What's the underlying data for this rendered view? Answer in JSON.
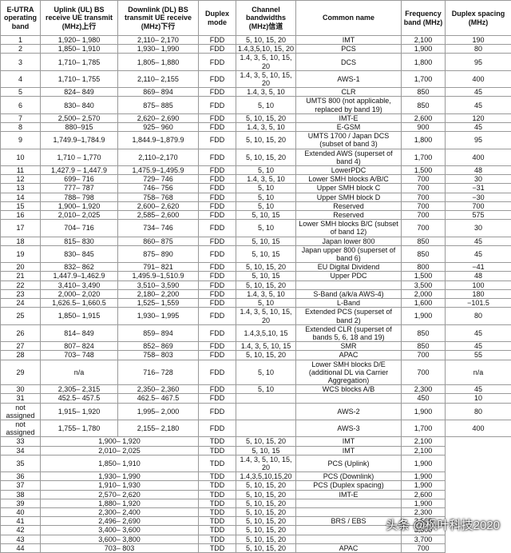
{
  "header": [
    "E-UTRA operating band",
    "Uplink (UL) BS receive UE transmit (MHz)上行",
    "Downlink (DL) BS transmit UE receive (MHz)下行",
    "Duplex mode",
    "Channel bandwidths (MHz)信道",
    "Common name",
    "Frequency band (MHz)",
    "Duplex spacing (MHz)"
  ],
  "rows": [
    {
      "band": "1",
      "uplink": "1,920– 1,980",
      "downlink": "2,110– 2,170",
      "duplex": "FDD",
      "bandwidths": "5, 10, 15, 20",
      "name": "IMT",
      "freq": "2,100",
      "spacing": "190"
    },
    {
      "band": "2",
      "uplink": "1,850– 1,910",
      "downlink": "1,930– 1,990",
      "duplex": "FDD",
      "bandwidths": "1.4,3,5,10, 15, 20",
      "name": "PCS",
      "freq": "1,900",
      "spacing": "80"
    },
    {
      "band": "3",
      "uplink": "1,710– 1,785",
      "downlink": "1,805– 1,880",
      "duplex": "FDD",
      "bandwidths": "1.4, 3, 5, 10, 15, 20",
      "name": "DCS",
      "freq": "1,800",
      "spacing": "95"
    },
    {
      "band": "4",
      "uplink": "1,710– 1,755",
      "downlink": "2,110– 2,155",
      "duplex": "FDD",
      "bandwidths": "1.4, 3, 5, 10, 15, 20",
      "name": "AWS-1",
      "freq": "1,700",
      "spacing": "400"
    },
    {
      "band": "5",
      "uplink": "824– 849",
      "downlink": "869– 894",
      "duplex": "FDD",
      "bandwidths": "1.4, 3, 5, 10",
      "name": "CLR",
      "freq": "850",
      "spacing": "45"
    },
    {
      "band": "6",
      "uplink": "830– 840",
      "downlink": "875– 885",
      "duplex": "FDD",
      "bandwidths": "5, 10",
      "name": "UMTS 800 (not applicable, replaced by band 19)",
      "freq": "850",
      "spacing": "45"
    },
    {
      "band": "7",
      "uplink": "2,500– 2,570",
      "downlink": "2,620– 2,690",
      "duplex": "FDD",
      "bandwidths": "5, 10, 15, 20",
      "name": "IMT-E",
      "freq": "2,600",
      "spacing": "120"
    },
    {
      "band": "8",
      "uplink": "880–915",
      "downlink": "925– 960",
      "duplex": "FDD",
      "bandwidths": "1.4, 3, 5, 10",
      "name": "E-GSM",
      "freq": "900",
      "spacing": "45"
    },
    {
      "band": "9",
      "uplink": "1,749.9–1,784.9",
      "downlink": "1,844.9–1,879.9",
      "duplex": "FDD",
      "bandwidths": "5, 10, 15, 20",
      "name": "UMTS 1700 / Japan DCS (subset of band 3)",
      "freq": "1,800",
      "spacing": "95"
    },
    {
      "band": "10",
      "uplink": "1,710 – 1,770",
      "downlink": "2,110–2,170",
      "duplex": "FDD",
      "bandwidths": "5, 10, 15, 20",
      "name": "Extended AWS (superset of band 4)",
      "freq": "1,700",
      "spacing": "400"
    },
    {
      "band": "11",
      "uplink": "1,427.9 – 1,447.9",
      "downlink": "1,475.9–1,495.9",
      "duplex": "FDD",
      "bandwidths": "5, 10",
      "name": "LowerPDC",
      "freq": "1,500",
      "spacing": "48"
    },
    {
      "band": "12",
      "uplink": "699– 716",
      "downlink": "729– 746",
      "duplex": "FDD",
      "bandwidths": "1.4, 3, 5, 10",
      "name": "Lower SMH blocks A/B/C",
      "freq": "700",
      "spacing": "30"
    },
    {
      "band": "13",
      "uplink": "777– 787",
      "downlink": "746– 756",
      "duplex": "FDD",
      "bandwidths": "5, 10",
      "name": "Upper SMH block C",
      "freq": "700",
      "spacing": "−31"
    },
    {
      "band": "14",
      "uplink": "788– 798",
      "downlink": "758– 768",
      "duplex": "FDD",
      "bandwidths": "5, 10",
      "name": "Upper SMH block D",
      "freq": "700",
      "spacing": "−30"
    },
    {
      "band": "15",
      "uplink": "1,900– 1,920",
      "downlink": "2,600– 2,620",
      "duplex": "FDD",
      "bandwidths": "5, 10",
      "name": "Reserved",
      "freq": "700",
      "spacing": "700"
    },
    {
      "band": "16",
      "uplink": "2,010– 2,025",
      "downlink": "2,585– 2,600",
      "duplex": "FDD",
      "bandwidths": "5, 10, 15",
      "name": "Reserved",
      "freq": "700",
      "spacing": "575"
    },
    {
      "band": "17",
      "uplink": "704– 716",
      "downlink": "734– 746",
      "duplex": "FDD",
      "bandwidths": "5, 10",
      "name": "Lower SMH blocks B/C (subset of band 12)",
      "freq": "700",
      "spacing": "30"
    },
    {
      "band": "18",
      "uplink": "815– 830",
      "downlink": "860– 875",
      "duplex": "FDD",
      "bandwidths": "5, 10, 15",
      "name": "Japan lower 800",
      "freq": "850",
      "spacing": "45"
    },
    {
      "band": "19",
      "uplink": "830– 845",
      "downlink": "875– 890",
      "duplex": "FDD",
      "bandwidths": "5, 10, 15",
      "name": "Japan upper 800 (superset of band 6)",
      "freq": "850",
      "spacing": "45"
    },
    {
      "band": "20",
      "uplink": "832– 862",
      "downlink": "791– 821",
      "duplex": "FDD",
      "bandwidths": "5, 10, 15, 20",
      "name": "EU Digital Dividend",
      "freq": "800",
      "spacing": "−41"
    },
    {
      "band": "21",
      "uplink": "1,447.9–1,462.9",
      "downlink": "1,495.9–1,510.9",
      "duplex": "FDD",
      "bandwidths": "5, 10, 15",
      "name": "Upper PDC",
      "freq": "1,500",
      "spacing": "48"
    },
    {
      "band": "22",
      "uplink": "3,410– 3,490",
      "downlink": "3,510– 3,590",
      "duplex": "FDD",
      "bandwidths": "5, 10, 15, 20",
      "freq": "3,500",
      "spacing": "100"
    },
    {
      "band": "23",
      "uplink": "2,000– 2,020",
      "downlink": "2,180– 2,200",
      "duplex": "FDD",
      "bandwidths": "1.4, 3, 5, 10",
      "name": "S-Band (a/k/a AWS-4)",
      "freq": "2,000",
      "spacing": "180"
    },
    {
      "band": "24",
      "uplink": "1,626.5– 1,660.5",
      "downlink": "1,525– 1,559",
      "duplex": "FDD",
      "bandwidths": "5, 10",
      "name": "L-Band",
      "freq": "1,600",
      "spacing": "−101.5"
    },
    {
      "band": "25",
      "uplink": "1,850– 1,915",
      "downlink": "1,930– 1,995",
      "duplex": "FDD",
      "bandwidths": "1.4, 3, 5, 10, 15, 20",
      "name": "Extended PCS (superset of band 2)",
      "freq": "1,900",
      "spacing": "80"
    },
    {
      "band": "26",
      "uplink": "814– 849",
      "downlink": "859– 894",
      "duplex": "FDD",
      "bandwidths": "1.4,3,5,10, 15",
      "name": "Extended CLR (superset of bands 5, 6, 18 and 19)",
      "freq": "850",
      "spacing": "45"
    },
    {
      "band": "27",
      "uplink": "807– 824",
      "downlink": "852– 869",
      "duplex": "FDD",
      "bandwidths": "1.4, 3, 5, 10, 15",
      "name": "SMR",
      "freq": "850",
      "spacing": "45"
    },
    {
      "band": "28",
      "uplink": "703– 748",
      "downlink": "758– 803",
      "duplex": "FDD",
      "bandwidths": "5, 10, 15, 20",
      "name": "APAC",
      "freq": "700",
      "spacing": "55"
    },
    {
      "band": "29",
      "uplink": "n/a",
      "downlink": "716– 728",
      "duplex": "FDD",
      "bandwidths": "5, 10",
      "name": "Lower SMH blocks D/E (additional DL via Carrier Aggregation)",
      "freq": "700",
      "spacing": "n/a"
    },
    {
      "band": "30",
      "uplink": "2,305– 2,315",
      "downlink": "2,350– 2,360",
      "duplex": "FDD",
      "bandwidths": "5, 10",
      "name": "WCS blocks A/B",
      "freq": "2,300",
      "spacing": "45"
    },
    {
      "band": "31",
      "uplink": "452.5– 457.5",
      "downlink": "462.5– 467.5",
      "duplex": "FDD",
      "freq": "450",
      "spacing": "10"
    },
    {
      "band": "not assigned",
      "uplink": "1,915– 1,920",
      "downlink": "1,995– 2,000",
      "duplex": "FDD",
      "name": "AWS-2",
      "freq": "1,900",
      "spacing": "80"
    },
    {
      "band": "not assigned",
      "uplink": "1,755– 1,780",
      "downlink": "2,155– 2,180",
      "duplex": "FDD",
      "name": "AWS-3",
      "freq": "1,700",
      "spacing": "400"
    },
    {
      "band": "33",
      "range": "1,900– 1,920",
      "duplex": "TDD",
      "bandwidths": "5, 10, 15, 20",
      "name": "IMT",
      "freq": "2,100"
    },
    {
      "band": "34",
      "range": "2,010– 2,025",
      "duplex": "TDD",
      "bandwidths": "5, 10, 15",
      "name": "IMT",
      "freq": "2,100"
    },
    {
      "band": "35",
      "range": "1,850– 1,910",
      "duplex": "TDD",
      "bandwidths": "1.4, 3, 5, 10, 15, 20",
      "name": "PCS (Uplink)",
      "freq": "1,900"
    },
    {
      "band": "36",
      "range": "1,930– 1,990",
      "duplex": "TDD",
      "bandwidths": "1.4,3,5,10,15,20",
      "name": "PCS (Downlink)",
      "freq": "1,900"
    },
    {
      "band": "37",
      "range": "1,910– 1,930",
      "duplex": "TDD",
      "bandwidths": "5, 10, 15, 20",
      "name": "PCS (Duplex spacing)",
      "freq": "1,900"
    },
    {
      "band": "38",
      "range": "2,570– 2,620",
      "duplex": "TDD",
      "bandwidths": "5, 10, 15, 20",
      "name": "IMT-E",
      "freq": "2,600"
    },
    {
      "band": "39",
      "range": "1,880– 1,920",
      "duplex": "TDD",
      "bandwidths": "5, 10, 15, 20",
      "freq": "1,900"
    },
    {
      "band": "40",
      "range": "2,300– 2,400",
      "duplex": "TDD",
      "bandwidths": "5, 10, 15, 20",
      "freq": "2,300"
    },
    {
      "band": "41",
      "range": "2,496– 2,690",
      "duplex": "TDD",
      "bandwidths": "5, 10, 15, 20",
      "name": "BRS / EBS",
      "freq": "2,500"
    },
    {
      "band": "42",
      "range": "3,400– 3,600",
      "duplex": "TDD",
      "bandwidths": "5, 10, 15, 20",
      "freq": "3,500"
    },
    {
      "band": "43",
      "range": "3,600– 3,800",
      "duplex": "TDD",
      "bandwidths": "5, 10, 15, 20",
      "freq": "3,700"
    },
    {
      "band": "44",
      "range": "703– 803",
      "duplex": "TDD",
      "bandwidths": "5, 10, 15, 20",
      "name": "APAC",
      "freq": "700"
    }
  ],
  "watermark": "头条 @枫叶科技2020"
}
